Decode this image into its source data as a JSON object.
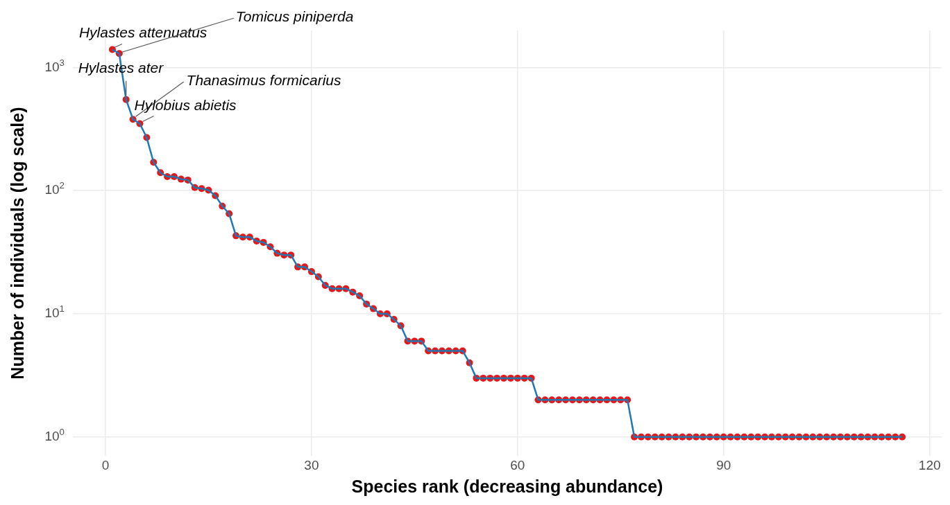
{
  "chart_data": {
    "type": "line",
    "xlabel": "Species rank (decreasing abundance)",
    "ylabel": "Number of individuals (log scale)",
    "x": [
      1,
      2,
      3,
      4,
      5,
      6,
      7,
      8,
      9,
      10,
      11,
      12,
      13,
      14,
      15,
      16,
      17,
      18,
      19,
      20,
      21,
      22,
      23,
      24,
      25,
      26,
      27,
      28,
      29,
      30,
      31,
      32,
      33,
      34,
      35,
      36,
      37,
      38,
      39,
      40,
      41,
      42,
      43,
      44,
      45,
      46,
      47,
      48,
      49,
      50,
      51,
      52,
      53,
      54,
      55,
      56,
      57,
      58,
      59,
      60,
      61,
      62,
      63,
      64,
      65,
      66,
      67,
      68,
      69,
      70,
      71,
      72,
      73,
      74,
      75,
      76,
      77,
      78,
      79,
      80,
      81,
      82,
      83,
      84,
      85,
      86,
      87,
      88,
      89,
      90,
      91,
      92,
      93,
      94,
      95,
      96,
      97,
      98,
      99,
      100,
      101,
      102,
      103,
      104,
      105,
      106,
      107,
      108,
      109,
      110,
      111,
      112,
      113,
      114,
      115,
      116
    ],
    "series": [
      {
        "type": "scatter",
        "color": "#e31a1c",
        "values": [
          1400,
          1300,
          550,
          380,
          350,
          270,
          170,
          140,
          130,
          130,
          124,
          122,
          106,
          104,
          101,
          91,
          75,
          65,
          43,
          42,
          42,
          39,
          38,
          35,
          31,
          30,
          30,
          24,
          24,
          22,
          20,
          17,
          16,
          16,
          16,
          15,
          14,
          12,
          11,
          10,
          10,
          9,
          8,
          6,
          6,
          6,
          5,
          5,
          5,
          5,
          5,
          5,
          4,
          3,
          3,
          3,
          3,
          3,
          3,
          3,
          3,
          3,
          2,
          2,
          2,
          2,
          2,
          2,
          2,
          2,
          2,
          2,
          2,
          2,
          2,
          2,
          1,
          1,
          1,
          1,
          1,
          1,
          1,
          1,
          1,
          1,
          1,
          1,
          1,
          1,
          1,
          1,
          1,
          1,
          1,
          1,
          1,
          1,
          1,
          1,
          1,
          1,
          1,
          1,
          1,
          1,
          1,
          1,
          1,
          1,
          1,
          1,
          1,
          1,
          1,
          1
        ]
      },
      {
        "color": "#1f78b4",
        "marker": "none",
        "values": [
          1400,
          1300,
          550,
          380,
          350,
          270,
          170,
          140,
          130,
          130,
          124,
          122,
          106,
          104,
          101,
          91,
          75,
          65,
          43,
          42,
          42,
          39,
          38,
          35,
          31,
          30,
          30,
          24,
          24,
          22,
          20,
          17,
          16,
          16,
          16,
          15,
          14,
          12,
          11,
          10,
          10,
          9,
          8,
          6,
          6,
          6,
          5,
          5,
          5,
          5,
          5,
          5,
          4,
          3,
          3,
          3,
          3,
          3,
          3,
          3,
          3,
          3,
          2,
          2,
          2,
          2,
          2,
          2,
          2,
          2,
          2,
          2,
          2,
          2,
          2,
          2,
          1,
          1,
          1,
          1,
          1,
          1,
          1,
          1,
          1,
          1,
          1,
          1,
          1,
          1,
          1,
          1,
          1,
          1,
          1,
          1,
          1,
          1,
          1,
          1,
          1,
          1,
          1,
          1,
          1,
          1,
          1,
          1,
          1,
          1,
          1,
          1,
          1,
          1,
          1,
          1
        ]
      }
    ],
    "log": "y",
    "xlim": [
      -4.75,
      121.75
    ],
    "xticks": [
      0,
      30,
      60,
      90,
      120
    ],
    "ylim": [
      0.7,
      2000
    ],
    "yticks": [
      {
        "value": 1,
        "label": "10$^{0}$"
      },
      {
        "value": 10,
        "label": "10$^{1}$"
      },
      {
        "value": 100,
        "label": "10$^{2}$"
      },
      {
        "value": 1000,
        "label": "10$^{3}$"
      }
    ],
    "grid": true,
    "legend": false,
    "marker": "circle",
    "line_style": "solid",
    "annotations": [
      {
        "text": "Hylastes attenuatus",
        "x": 1,
        "y": 1400
      },
      {
        "text": "Tomicus piniperda",
        "x": 2,
        "y": 1300
      },
      {
        "text": "Hylastes ater",
        "x": 3,
        "y": 550
      },
      {
        "text": "Thanasimus formicarius",
        "x": 4,
        "y": 380
      },
      {
        "text": "Hylobius abietis",
        "x": 5,
        "y": 350
      }
    ]
  }
}
